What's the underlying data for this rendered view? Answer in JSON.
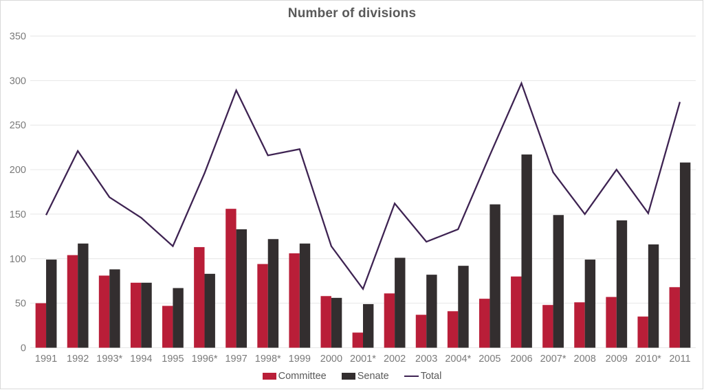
{
  "chart_data": {
    "type": "bar",
    "title": "Number of divisions",
    "categories": [
      "1991",
      "1992",
      "1993*",
      "1994",
      "1995",
      "1996*",
      "1997",
      "1998*",
      "1999",
      "2000",
      "2001*",
      "2002",
      "2003",
      "2004*",
      "2005",
      "2006",
      "2007*",
      "2008",
      "2009",
      "2010*",
      "2011"
    ],
    "series": [
      {
        "name": "Committee",
        "type": "bar",
        "color": "#b91e38",
        "values": [
          50,
          104,
          81,
          73,
          47,
          113,
          156,
          94,
          106,
          58,
          17,
          61,
          37,
          41,
          55,
          80,
          48,
          51,
          57,
          35,
          68
        ]
      },
      {
        "name": "Senate",
        "type": "bar",
        "color": "#332e2f",
        "values": [
          99,
          117,
          88,
          73,
          67,
          83,
          133,
          122,
          117,
          56,
          49,
          101,
          82,
          92,
          161,
          217,
          149,
          99,
          143,
          116,
          208
        ]
      },
      {
        "name": "Total",
        "type": "line",
        "color": "#3e2352",
        "values": [
          149,
          221,
          169,
          146,
          114,
          196,
          289,
          216,
          223,
          114,
          66,
          162,
          119,
          133,
          216,
          297,
          197,
          150,
          200,
          151,
          276
        ]
      }
    ],
    "y_axis": {
      "min": 0,
      "max": 350,
      "step": 50,
      "tick_labels": [
        "0",
        "50",
        "100",
        "150",
        "200",
        "250",
        "300",
        "350"
      ]
    },
    "x_axis": {
      "tick_labels_note": "years, * marks half years"
    },
    "grid": true,
    "legend_position": "bottom",
    "colors": {
      "title_text": "#595959",
      "axis_text": "#7a7a7a",
      "legend_text": "#595959",
      "gridline": "#e6e6e6",
      "frame_border": "#d9d9d9",
      "committee_bar": "#b91e38",
      "senate_bar": "#332e2f",
      "total_line": "#3e2352"
    }
  }
}
